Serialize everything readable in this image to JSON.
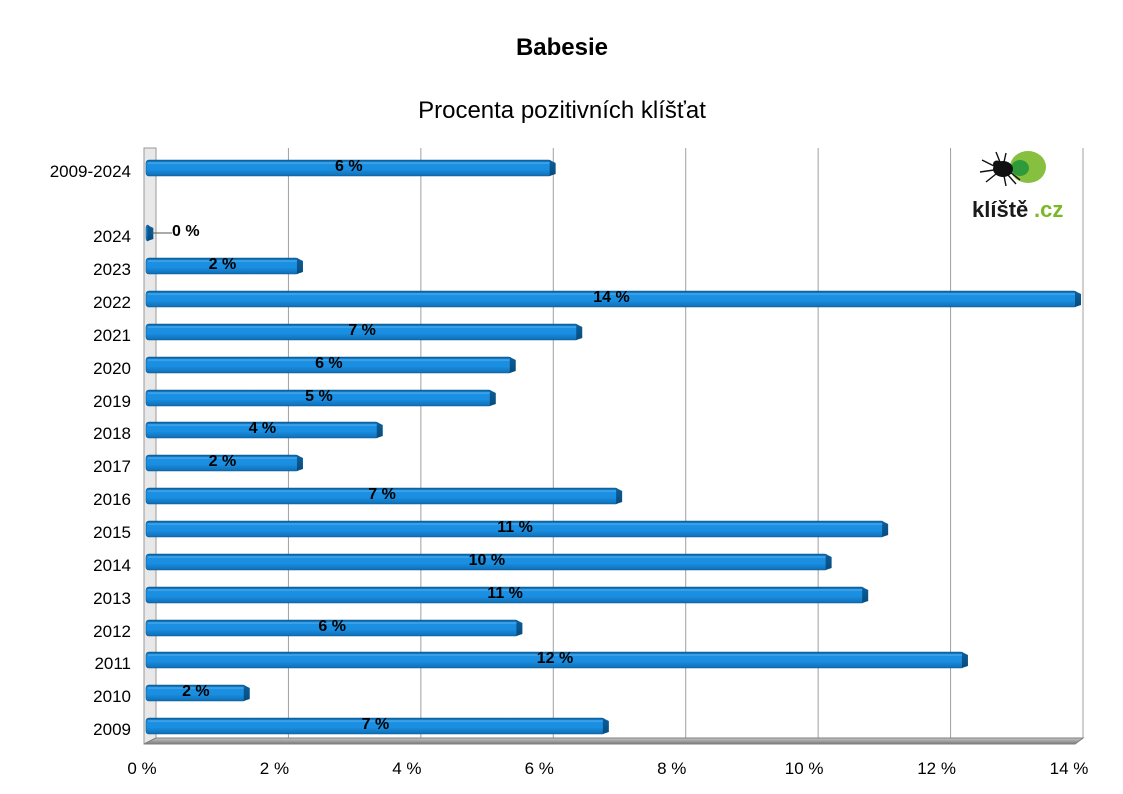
{
  "chart_data": {
    "type": "bar",
    "orientation": "horizontal",
    "title": "Babesie",
    "subtitle": "Procenta pozitivních klíšťat",
    "categories": [
      "2009-2024",
      "2024",
      "2023",
      "2022",
      "2021",
      "2020",
      "2019",
      "2018",
      "2017",
      "2016",
      "2015",
      "2014",
      "2013",
      "2012",
      "2011",
      "2010",
      "2009"
    ],
    "values": [
      6.1,
      0.05,
      2.3,
      14.0,
      6.5,
      5.5,
      5.2,
      3.5,
      2.3,
      7.1,
      11.1,
      10.25,
      10.8,
      5.6,
      12.3,
      1.5,
      6.9
    ],
    "data_labels": [
      "6 %",
      "0 %",
      "2 %",
      "14 %",
      "7 %",
      "6 %",
      "5 %",
      "4 %",
      "2 %",
      "7 %",
      "11 %",
      "10 %",
      "11 %",
      "6 %",
      "12 %",
      "2 %",
      "7 %"
    ],
    "x_ticks": [
      "0 %",
      "2 %",
      "4 %",
      "6 %",
      "8 %",
      "10 %",
      "12 %",
      "14 %"
    ],
    "xlim": [
      0,
      14
    ],
    "xlabel": "",
    "ylabel": "",
    "grid": "vertical",
    "bar_color": "#1a8ee0"
  },
  "logo": {
    "text_main": "klíště",
    "text_suffix": ".cz",
    "icon": "tick-bug-icon",
    "colors": {
      "main": "#1a1a1a",
      "suffix": "#7ab829",
      "blob": "#7ab829"
    }
  }
}
